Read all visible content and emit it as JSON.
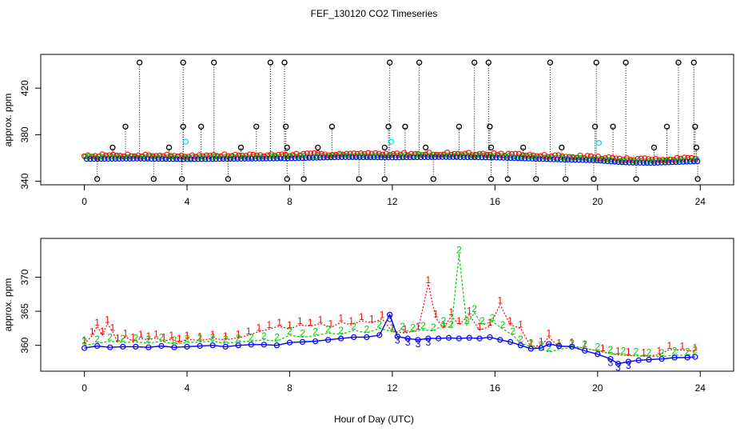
{
  "title": "FEF_130120  CO2 Timeseries",
  "xlabel": "Hour of Day (UTC)",
  "colors": {
    "s1": "#ff0000",
    "s2": "#00cc00",
    "s3": "#0000ff",
    "flag": "#000000",
    "cyan": "#00e5e5",
    "axis": "#000000"
  },
  "chart_data": [
    {
      "type": "scatter",
      "title": "FEF_130120  CO2 Timeseries",
      "ylabel": "approx. ppm",
      "xlim": [
        -1.7,
        25.3
      ],
      "ylim": [
        337,
        449
      ],
      "x_ticks": [
        0,
        4,
        8,
        12,
        16,
        20,
        24
      ],
      "y_ticks": [
        340,
        380,
        420
      ],
      "baseline": [
        [
          0,
          359.2
        ],
        [
          2,
          359.5
        ],
        [
          4,
          359.0
        ],
        [
          6,
          359.4
        ],
        [
          8,
          359.8
        ],
        [
          10,
          360.8
        ],
        [
          12,
          360.5
        ],
        [
          14,
          360.9
        ],
        [
          16,
          360.4
        ],
        [
          18,
          359.0
        ],
        [
          19.9,
          358.0
        ],
        [
          20.1,
          357.6
        ],
        [
          21,
          356.2
        ],
        [
          22,
          355.8
        ],
        [
          23.8,
          357.2
        ]
      ],
      "spikes_high": [
        2.15,
        3.85,
        5.05,
        7.25,
        7.8,
        11.9,
        13.05,
        15.2,
        15.75,
        18.15,
        19.95,
        21.1,
        23.15,
        23.75
      ],
      "spikes_mid": [
        1.6,
        3.85,
        4.55,
        6.7,
        7.85,
        9.65,
        11.85,
        12.5,
        14.6,
        15.8,
        19.9,
        20.6,
        22.7,
        23.8
      ],
      "spikes_small": [
        1.1,
        3.3,
        6.1,
        7.9,
        9.1,
        11.7,
        13.3,
        15.85,
        17.1,
        18.6,
        22.2,
        23.85
      ],
      "spikes_low": [
        0.5,
        2.7,
        3.8,
        5.6,
        7.9,
        8.55,
        10.7,
        11.7,
        13.6,
        15.85,
        16.5,
        17.6,
        18.75,
        19.85,
        21.5,
        23.9
      ],
      "cyan_points": [
        [
          3.95,
          374
        ],
        [
          11.95,
          374
        ],
        [
          20.05,
          373
        ]
      ],
      "high_value": 442,
      "mid_value": 387,
      "small_value": 369,
      "low_value": 342
    },
    {
      "type": "line",
      "ylabel": "approx. ppm",
      "xlim": [
        -1.7,
        25.3
      ],
      "ylim": [
        356.2,
        375.7
      ],
      "x_ticks": [
        0,
        4,
        8,
        12,
        16,
        20,
        24
      ],
      "y_ticks": [
        360,
        365,
        370
      ],
      "series": [
        {
          "name": "1",
          "color": "#ff0000",
          "points": [
            [
              0,
              360.2
            ],
            [
              0.3,
              361.4
            ],
            [
              0.5,
              362.8
            ],
            [
              0.7,
              361.5
            ],
            [
              0.9,
              363.2
            ],
            [
              1.1,
              362.0
            ],
            [
              1.3,
              360.5
            ],
            [
              1.6,
              361.2
            ],
            [
              1.9,
              360.6
            ],
            [
              2.2,
              361.0
            ],
            [
              2.5,
              360.8
            ],
            [
              2.8,
              361.1
            ],
            [
              3.1,
              360.6
            ],
            [
              3.4,
              360.9
            ],
            [
              3.7,
              360.4
            ],
            [
              4.0,
              360.9
            ],
            [
              4.5,
              360.7
            ],
            [
              5.0,
              361.0
            ],
            [
              5.5,
              360.8
            ],
            [
              6.0,
              361.1
            ],
            [
              6.4,
              361.5
            ],
            [
              6.8,
              362.0
            ],
            [
              7.2,
              362.4
            ],
            [
              7.6,
              362.8
            ],
            [
              8.0,
              362.4
            ],
            [
              8.4,
              363.0
            ],
            [
              8.8,
              362.8
            ],
            [
              9.2,
              363.2
            ],
            [
              9.6,
              362.6
            ],
            [
              10.0,
              363.4
            ],
            [
              10.4,
              363.0
            ],
            [
              10.8,
              363.6
            ],
            [
              11.2,
              363.3
            ],
            [
              11.6,
              363.9
            ],
            [
              12.0,
              362.0
            ],
            [
              12.5,
              361.8
            ],
            [
              13.0,
              362.2
            ],
            [
              13.4,
              369.0
            ],
            [
              13.7,
              364.0
            ],
            [
              14.0,
              362.5
            ],
            [
              14.3,
              364.3
            ],
            [
              14.6,
              363.0
            ],
            [
              15.0,
              364.5
            ],
            [
              15.4,
              362.2
            ],
            [
              15.8,
              362.8
            ],
            [
              16.2,
              366.0
            ],
            [
              16.6,
              363.0
            ],
            [
              17.0,
              362.5
            ],
            [
              17.4,
              359.8
            ],
            [
              17.8,
              360.0
            ],
            [
              18.1,
              361.2
            ],
            [
              18.5,
              359.8
            ],
            [
              19.0,
              359.9
            ],
            [
              19.5,
              359.6
            ],
            [
              20.2,
              359.0
            ],
            [
              20.8,
              358.6
            ],
            [
              21.2,
              358.5
            ],
            [
              21.8,
              358.4
            ],
            [
              22.4,
              358.6
            ],
            [
              22.8,
              359.4
            ],
            [
              23.3,
              359.3
            ],
            [
              23.8,
              359.1
            ]
          ]
        },
        {
          "name": "2",
          "color": "#00cc00",
          "points": [
            [
              0,
              360.0
            ],
            [
              0.5,
              360.3
            ],
            [
              1.0,
              360.6
            ],
            [
              1.5,
              360.4
            ],
            [
              2.0,
              360.5
            ],
            [
              2.5,
              360.3
            ],
            [
              3.0,
              360.6
            ],
            [
              3.5,
              360.2
            ],
            [
              4.0,
              360.4
            ],
            [
              4.5,
              360.5
            ],
            [
              5.0,
              360.6
            ],
            [
              5.5,
              360.3
            ],
            [
              6.0,
              360.5
            ],
            [
              6.5,
              360.6
            ],
            [
              7.0,
              360.8
            ],
            [
              7.5,
              360.6
            ],
            [
              8.0,
              361.5
            ],
            [
              8.5,
              361.2
            ],
            [
              9.0,
              361.4
            ],
            [
              9.5,
              361.8
            ],
            [
              10.0,
              361.6
            ],
            [
              10.5,
              362.2
            ],
            [
              11.0,
              361.8
            ],
            [
              11.5,
              362.5
            ],
            [
              12.0,
              362.0
            ],
            [
              12.4,
              362.2
            ],
            [
              12.8,
              362.0
            ],
            [
              13.2,
              362.3
            ],
            [
              13.6,
              362.1
            ],
            [
              14.0,
              363.0
            ],
            [
              14.3,
              362.5
            ],
            [
              14.6,
              373.4
            ],
            [
              14.9,
              363.0
            ],
            [
              15.2,
              364.8
            ],
            [
              15.5,
              363.0
            ],
            [
              15.9,
              363.5
            ],
            [
              16.3,
              362.4
            ],
            [
              16.7,
              361.5
            ],
            [
              17.0,
              360.3
            ],
            [
              17.4,
              359.8
            ],
            [
              17.8,
              359.5
            ],
            [
              18.1,
              359.0
            ],
            [
              18.5,
              359.4
            ],
            [
              19.0,
              359.7
            ],
            [
              19.5,
              359.6
            ],
            [
              20.0,
              359.2
            ],
            [
              20.5,
              358.8
            ],
            [
              21.0,
              358.6
            ],
            [
              21.5,
              358.5
            ],
            [
              22.0,
              358.4
            ],
            [
              22.5,
              358.3
            ],
            [
              23.0,
              358.6
            ],
            [
              23.5,
              358.5
            ],
            [
              23.8,
              358.7
            ]
          ]
        },
        {
          "name": "3",
          "color": "#0000ff",
          "points": [
            [
              0,
              359.6
            ],
            [
              0.5,
              359.9
            ],
            [
              1.0,
              359.7
            ],
            [
              1.5,
              359.8
            ],
            [
              2.0,
              359.8
            ],
            [
              2.5,
              359.7
            ],
            [
              3.0,
              359.9
            ],
            [
              3.5,
              359.7
            ],
            [
              4.0,
              359.8
            ],
            [
              4.5,
              359.9
            ],
            [
              5.0,
              360.0
            ],
            [
              5.5,
              359.8
            ],
            [
              6.0,
              360.0
            ],
            [
              6.5,
              360.1
            ],
            [
              7.0,
              360.1
            ],
            [
              7.5,
              360.0
            ],
            [
              8.0,
              360.4
            ],
            [
              8.5,
              360.5
            ],
            [
              9.0,
              360.6
            ],
            [
              9.5,
              360.8
            ],
            [
              10.0,
              361.0
            ],
            [
              10.5,
              361.2
            ],
            [
              11.0,
              361.2
            ],
            [
              11.5,
              361.5
            ],
            [
              11.9,
              364.5
            ],
            [
              12.2,
              361.3
            ],
            [
              12.6,
              361.0
            ],
            [
              13.0,
              360.8
            ],
            [
              13.4,
              361.0
            ],
            [
              13.8,
              361.0
            ],
            [
              14.2,
              361.1
            ],
            [
              14.6,
              361.0
            ],
            [
              15.0,
              361.1
            ],
            [
              15.4,
              361.0
            ],
            [
              15.8,
              361.2
            ],
            [
              16.2,
              360.8
            ],
            [
              16.6,
              360.5
            ],
            [
              17.0,
              360.0
            ],
            [
              17.4,
              359.5
            ],
            [
              17.8,
              359.6
            ],
            [
              18.1,
              360.2
            ],
            [
              18.5,
              359.9
            ],
            [
              19.0,
              359.8
            ],
            [
              19.5,
              359.2
            ],
            [
              20.0,
              358.7
            ],
            [
              20.5,
              358.0
            ],
            [
              20.8,
              357.3
            ],
            [
              21.2,
              357.6
            ],
            [
              21.6,
              357.8
            ],
            [
              22.0,
              357.9
            ],
            [
              22.5,
              358.0
            ],
            [
              23.0,
              358.2
            ],
            [
              23.5,
              358.2
            ],
            [
              23.8,
              358.3
            ]
          ]
        }
      ]
    }
  ]
}
